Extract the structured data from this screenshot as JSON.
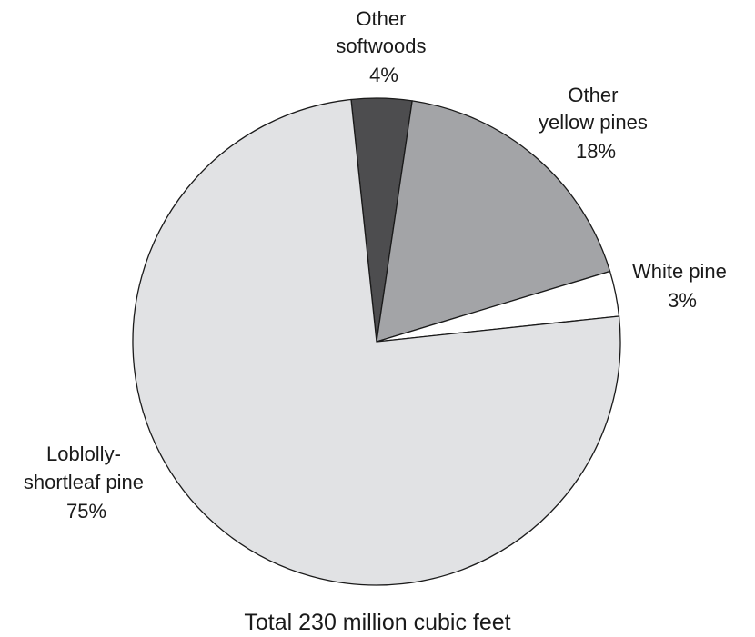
{
  "chart_data": {
    "type": "pie",
    "caption": "Total 230 million cubic feet",
    "slices": [
      {
        "name": "Other softwoods",
        "label_lines": [
          "Other",
          "softwoods"
        ],
        "value_label": "4%",
        "value": 4,
        "color": "#4d4d4f"
      },
      {
        "name": "Other yellow pines",
        "label_lines": [
          "Other",
          "yellow pines"
        ],
        "value_label": "18%",
        "value": 18,
        "color": "#a3a4a7"
      },
      {
        "name": "White pine",
        "label_lines": [
          "White pine"
        ],
        "value_label": "3%",
        "value": 3,
        "color": "#ffffff"
      },
      {
        "name": "Loblolly-shortleaf pine",
        "label_lines": [
          "Loblolly-",
          "shortleaf pine"
        ],
        "value_label": "75%",
        "value": 75,
        "color": "#e1e2e4"
      }
    ]
  }
}
